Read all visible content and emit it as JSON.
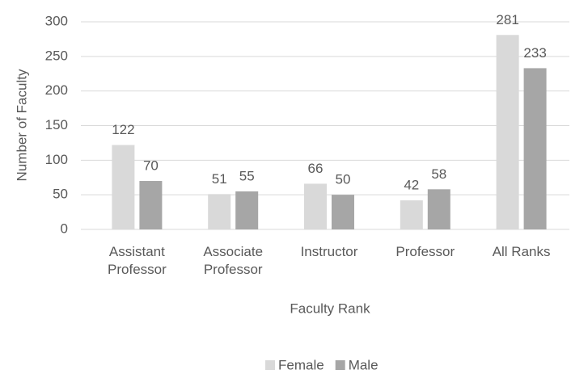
{
  "chart_data": {
    "type": "bar",
    "x_label": "Faculty Rank",
    "y_label": "Number of Faculty",
    "categories": [
      "Assistant Professor",
      "Associate Professor",
      "Instructor",
      "Professor",
      "All Ranks"
    ],
    "series": [
      {
        "name": "Female",
        "color": "#d9d9d9",
        "values": [
          122,
          51,
          66,
          42,
          281
        ]
      },
      {
        "name": "Male",
        "color": "#a6a6a6",
        "values": [
          70,
          55,
          50,
          58,
          233
        ]
      }
    ],
    "ylim": [
      0,
      300
    ],
    "yticks": [
      0,
      50,
      100,
      150,
      200,
      250,
      300
    ],
    "grid": true,
    "legend": "bottom"
  }
}
